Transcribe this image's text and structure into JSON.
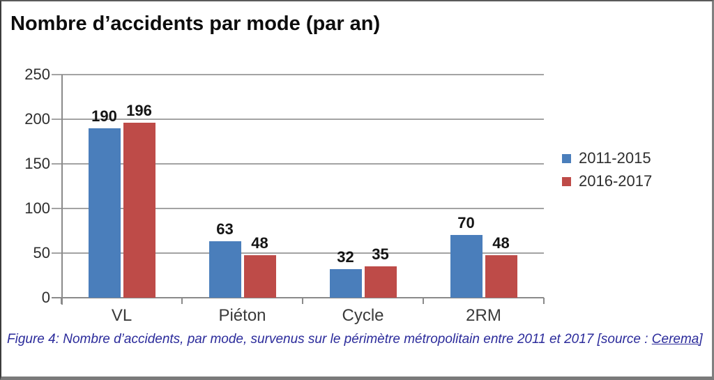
{
  "title": "Nombre d’accidents par mode (par an)",
  "caption": {
    "prefix": "Figure 4: Nombre d’accidents, par mode, survenus sur le périmètre métropolitain entre 2011 et 2017 [source : ",
    "link_label": "Cerema",
    "suffix": "]"
  },
  "ui_colors": {
    "series_blue": "#4a7ebb",
    "series_red": "#be4b48",
    "gridline": "#a3a3a3",
    "axis": "#8a8a8a",
    "caption_text": "#2b2b9b",
    "tick_label": "#2e2e2e"
  },
  "chart_data": {
    "type": "bar",
    "categories": [
      "VL",
      "Piéton",
      "Cycle",
      "2RM"
    ],
    "series": [
      {
        "name": "2011-2015",
        "color": "#4a7ebb",
        "values": [
          190,
          63,
          32,
          70
        ]
      },
      {
        "name": "2016-2017",
        "color": "#be4b48",
        "values": [
          196,
          48,
          35,
          48
        ]
      }
    ],
    "title": "Nombre d’accidents par mode (par an)",
    "xlabel": "",
    "ylabel": "",
    "ylim": [
      0,
      250
    ],
    "yticks": [
      0,
      50,
      100,
      150,
      200,
      250
    ],
    "grid": true,
    "data_labels": true,
    "legend_position": "right"
  }
}
